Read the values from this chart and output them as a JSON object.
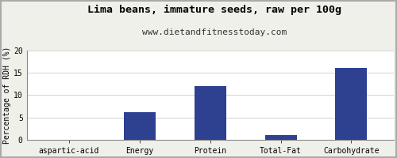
{
  "title": "Lima beans, immature seeds, raw per 100g",
  "subtitle": "www.dietandfitnesstoday.com",
  "categories": [
    "aspartic-acid",
    "Energy",
    "Protein",
    "Total-Fat",
    "Carbohydrate"
  ],
  "values": [
    0,
    6.1,
    12.1,
    1.0,
    16.1
  ],
  "bar_color": "#2e4090",
  "ylabel": "Percentage of RDH (%)",
  "ylim": [
    0,
    20
  ],
  "yticks": [
    0,
    5,
    10,
    15,
    20
  ],
  "background_color": "#f0f0ea",
  "plot_bg_color": "#ffffff",
  "title_fontsize": 9.5,
  "subtitle_fontsize": 8,
  "ylabel_fontsize": 7,
  "tick_fontsize": 7,
  "border_color": "#aaaaaa"
}
